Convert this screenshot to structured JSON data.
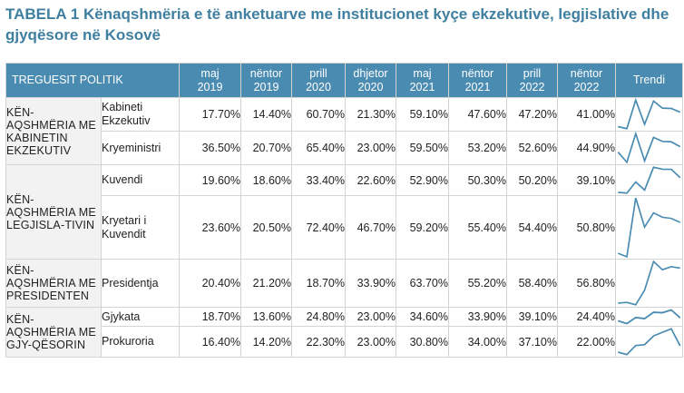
{
  "title": "TABELA 1 Kënaqshmëria e të anketuarve me institucionet kyçe ekzekutive, legjislative dhe gjyqësore në Kosovë",
  "header": {
    "label": "TREGUESIT POLITIK",
    "periods": [
      {
        "m": "maj",
        "y": "2019"
      },
      {
        "m": "nëntor",
        "y": "2019"
      },
      {
        "m": "prill",
        "y": "2020"
      },
      {
        "m": "dhjetor",
        "y": "2020"
      },
      {
        "m": "maj",
        "y": "2021"
      },
      {
        "m": "nëntor",
        "y": "2021"
      },
      {
        "m": "prill",
        "y": "2022"
      },
      {
        "m": "nëntor",
        "y": "2022"
      }
    ],
    "trend": "Trendi"
  },
  "groups": [
    "KËN-AQSHMËRIA ME KABINETIN EKZEKUTIV",
    "KËN-AQSHMËRIA ME LEGJISLA-TIVIN",
    "KËN-AQSHMËRIA ME PRESIDENTEN",
    "KËN-AQSHMËRIA ME GJY-QËSORIN"
  ],
  "rows": [
    {
      "inst": "Kabineti Ekzekutiv",
      "values": [
        "17.70%",
        "14.40%",
        "60.70%",
        "21.30%",
        "59.10%",
        "47.60%",
        "47.20%",
        "41.00%"
      ],
      "trend": [
        17.7,
        14.4,
        60.7,
        21.3,
        59.1,
        47.6,
        47.2,
        41.0
      ]
    },
    {
      "inst": "Kryeministri",
      "values": [
        "36.50%",
        "20.70%",
        "65.40%",
        "23.00%",
        "59.50%",
        "53.20%",
        "52.60%",
        "44.90%"
      ],
      "trend": [
        36.5,
        20.7,
        65.4,
        23.0,
        59.5,
        53.2,
        52.6,
        44.9
      ]
    },
    {
      "inst": "Kuvendi",
      "values": [
        "19.60%",
        "18.60%",
        "33.40%",
        "22.60%",
        "52.90%",
        "50.30%",
        "50.20%",
        "39.10%"
      ],
      "trend": [
        19.6,
        18.6,
        33.4,
        22.6,
        52.9,
        50.3,
        50.2,
        39.1
      ]
    },
    {
      "inst": "Kryetari i Kuvendit",
      "values": [
        "23.60%",
        "20.50%",
        "72.40%",
        "46.70%",
        "59.20%",
        "55.40%",
        "54.40%",
        "50.80%"
      ],
      "trend": [
        23.6,
        20.5,
        72.4,
        46.7,
        59.2,
        55.4,
        54.4,
        50.8
      ]
    },
    {
      "inst": "Presidentja",
      "values": [
        "20.40%",
        "21.20%",
        "18.70%",
        "33.90%",
        "63.70%",
        "55.20%",
        "58.40%",
        "56.80%"
      ],
      "trend": [
        20.4,
        21.2,
        18.7,
        33.9,
        63.7,
        55.2,
        58.4,
        56.8
      ]
    },
    {
      "inst": "Gjykata",
      "values": [
        "18.70%",
        "13.60%",
        "24.80%",
        "23.00%",
        "34.60%",
        "33.90%",
        "39.10%",
        "24.40%"
      ],
      "trend": [
        18.7,
        13.6,
        24.8,
        23.0,
        34.6,
        33.9,
        39.1,
        24.4
      ]
    },
    {
      "inst": "Prokuroria",
      "values": [
        "16.40%",
        "14.20%",
        "22.30%",
        "23.00%",
        "30.80%",
        "34.00%",
        "37.10%",
        "22.00%"
      ],
      "trend": [
        16.4,
        14.2,
        22.3,
        23.0,
        30.8,
        34.0,
        37.1,
        22.0
      ]
    }
  ],
  "colors": {
    "header": "#4a8bb1",
    "title": "#3f7fa0",
    "trendline": "#4a8bb1"
  }
}
